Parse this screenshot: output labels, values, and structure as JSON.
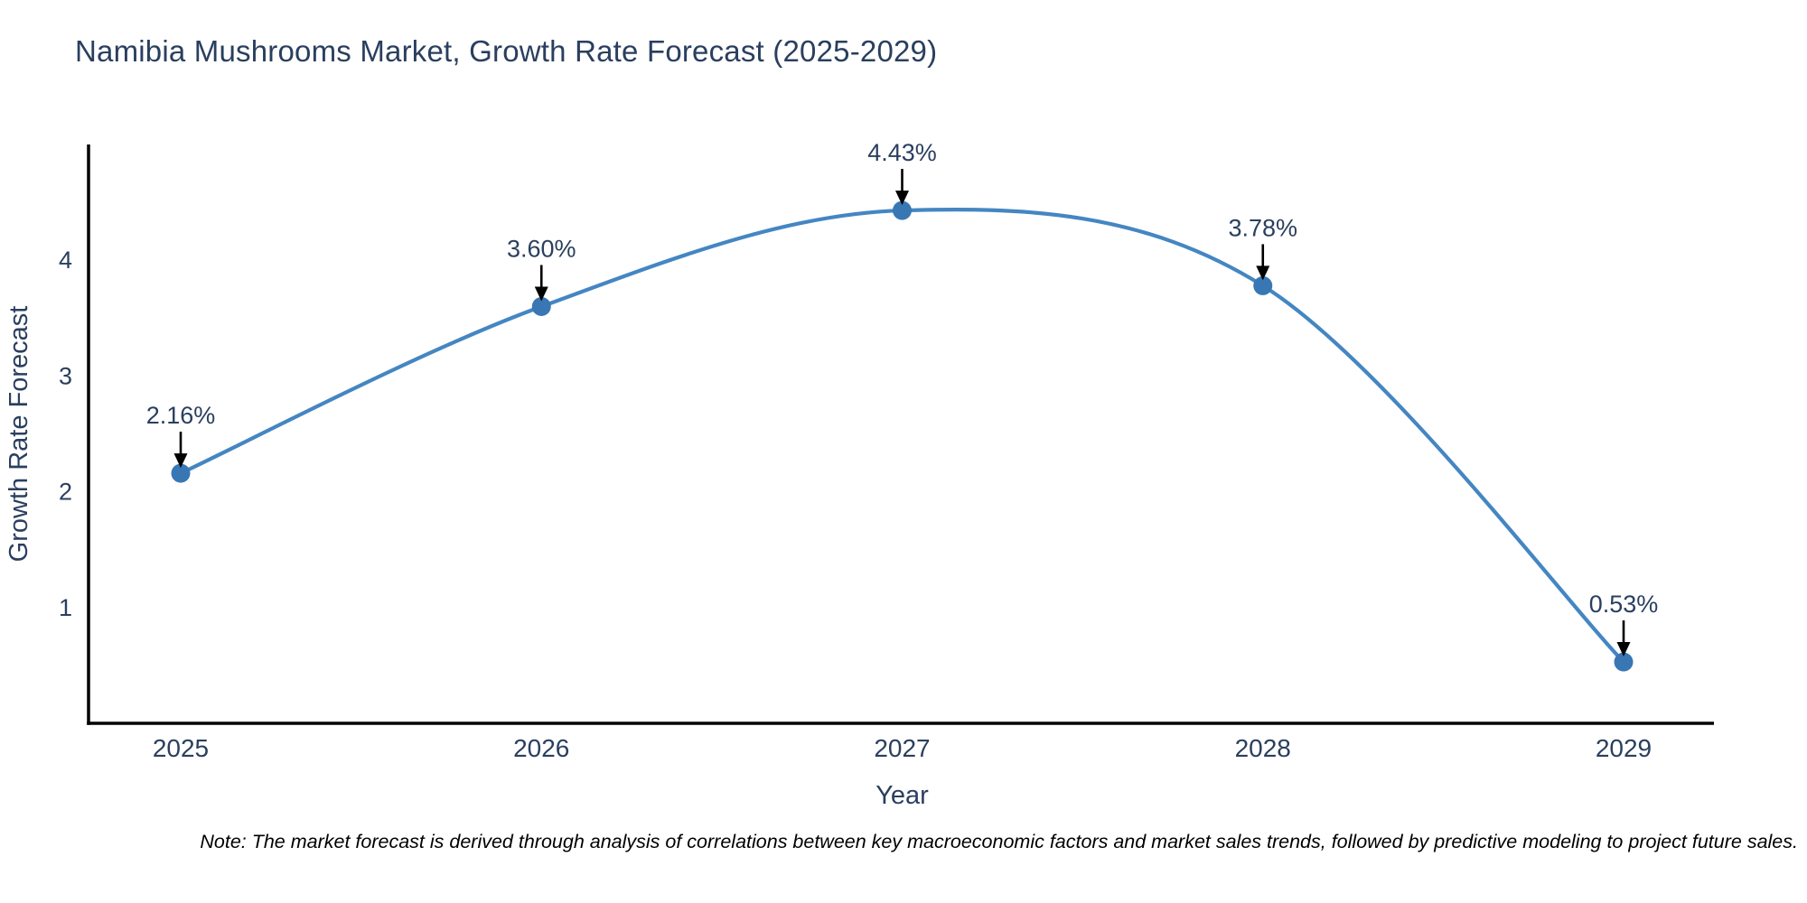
{
  "chart": {
    "title": "Namibia Mushrooms Market, Growth Rate Forecast (2025-2029)",
    "note": "Note: The market forecast is derived through analysis of correlations between key macroeconomic factors and market sales trends, followed by predictive modeling to project future sales."
  },
  "chart_data": {
    "type": "line",
    "title": "Namibia Mushrooms Market, Growth Rate Forecast (2025-2029)",
    "xlabel": "Year",
    "ylabel": "Growth Rate Forecast",
    "x": [
      "2025",
      "2026",
      "2027",
      "2028",
      "2029"
    ],
    "series": [
      {
        "name": "Growth Rate Forecast",
        "values": [
          2.16,
          3.6,
          4.43,
          3.78,
          0.53
        ],
        "point_labels": [
          "2.16%",
          "3.60%",
          "4.43%",
          "3.78%",
          "0.53%"
        ]
      }
    ],
    "ylim": [
      0,
      5
    ],
    "yticks": [
      1,
      2,
      3,
      4
    ],
    "grid": false,
    "legend_position": "none",
    "line_smoothing": "spline",
    "colors": {
      "line": "#4486c2",
      "marker": "#3877b4",
      "axis": "#000000",
      "tick_label": "#2a3f5f",
      "annotation_text": "#2a3f5f",
      "annotation_arrow": "#000000"
    }
  }
}
